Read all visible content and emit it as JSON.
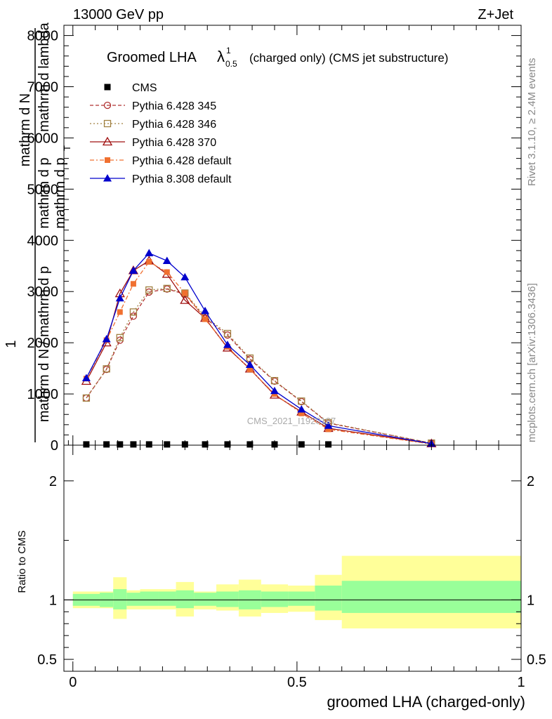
{
  "header": {
    "left": "13000 GeV pp",
    "right": "Z+Jet"
  },
  "plot": {
    "title_main": "Groomed LHA",
    "title_lambda": "λ",
    "title_sub": "0.5",
    "title_sup": "1",
    "title_rest": "(charged only) (CMS jet substructure)",
    "watermark": "CMS_2021_I1920187"
  },
  "side_labels": {
    "rivet": "Rivet 3.1.10, ≥ 2.4M events",
    "mcplots": "mcplots.cern.ch [arXiv:1306.3436]"
  },
  "ylabel_parts": {
    "one": "1",
    "line1": "mathrm d N",
    "line2": "mathrm d p",
    "line3": "mathrm d N / mathrm d p",
    "line4": "mathrm d p",
    "line5": "mathrm d lambda",
    "sub_t": "T"
  },
  "chart_data": [
    {
      "type": "line",
      "panel": "main",
      "xlabel": "groomed LHA (charged-only)",
      "ylim": [
        0,
        8200
      ],
      "xlim": [
        -0.02,
        1.0
      ],
      "y_ticks": [
        0,
        1000,
        2000,
        3000,
        4000,
        5000,
        6000,
        7000,
        8000
      ],
      "y_tick_labels": [
        "0",
        "1000",
        "2000",
        "3000",
        "4000",
        "5000",
        "6000",
        "7000",
        "8000"
      ],
      "legend_position": "top-left",
      "series": [
        {
          "name": "CMS",
          "color": "#000000",
          "marker": "filled-square",
          "x": [
            0.03,
            0.075,
            0.105,
            0.135,
            0.17,
            0.21,
            0.25,
            0.295,
            0.345,
            0.395,
            0.45,
            0.51,
            0.57
          ],
          "y": [
            15,
            15,
            15,
            15,
            15,
            15,
            15,
            15,
            15,
            15,
            15,
            15,
            15
          ]
        },
        {
          "name": "Pythia 6.428 345",
          "color": "#b03030",
          "marker": "open-circle",
          "dash": "5,3",
          "x": [
            0.03,
            0.075,
            0.105,
            0.135,
            0.17,
            0.21,
            0.25,
            0.295,
            0.345,
            0.395,
            0.45,
            0.51,
            0.57,
            0.8
          ],
          "y": [
            920,
            1480,
            2050,
            2520,
            2990,
            3050,
            2950,
            2480,
            2150,
            1680,
            1250,
            850,
            430,
            40
          ]
        },
        {
          "name": "Pythia 6.428 346",
          "color": "#a08040",
          "marker": "open-square",
          "dash": "2,3",
          "x": [
            0.03,
            0.075,
            0.105,
            0.135,
            0.17,
            0.21,
            0.25,
            0.295,
            0.345,
            0.395,
            0.45,
            0.51,
            0.57,
            0.8
          ],
          "y": [
            920,
            1490,
            2100,
            2600,
            3030,
            3060,
            2970,
            2510,
            2180,
            1700,
            1260,
            860,
            440,
            40
          ]
        },
        {
          "name": "Pythia 6.428 370",
          "color": "#a01010",
          "marker": "open-triangle",
          "dash": "",
          "x": [
            0.03,
            0.075,
            0.105,
            0.135,
            0.17,
            0.21,
            0.25,
            0.295,
            0.345,
            0.395,
            0.45,
            0.51,
            0.57,
            0.8
          ],
          "y": [
            1250,
            2000,
            2960,
            3410,
            3600,
            3340,
            2830,
            2480,
            1900,
            1490,
            980,
            650,
            330,
            30
          ]
        },
        {
          "name": "Pythia 6.428 default",
          "color": "#f07030",
          "marker": "filled-square-small",
          "dash": "6,3,2,3",
          "x": [
            0.03,
            0.075,
            0.105,
            0.135,
            0.17,
            0.21,
            0.25,
            0.295,
            0.345,
            0.395,
            0.45,
            0.51,
            0.57,
            0.8
          ],
          "y": [
            1300,
            2050,
            2600,
            3150,
            3580,
            3380,
            2970,
            2460,
            1920,
            1480,
            1000,
            620,
            310,
            20
          ]
        },
        {
          "name": "Pythia 8.308 default",
          "color": "#0000cc",
          "marker": "filled-triangle",
          "dash": "",
          "x": [
            0.03,
            0.075,
            0.105,
            0.135,
            0.17,
            0.21,
            0.25,
            0.295,
            0.345,
            0.395,
            0.45,
            0.51,
            0.57,
            0.8
          ],
          "y": [
            1310,
            2070,
            2870,
            3410,
            3750,
            3600,
            3280,
            2620,
            1960,
            1570,
            1060,
            700,
            380,
            30
          ]
        }
      ]
    },
    {
      "type": "area",
      "panel": "ratio",
      "ylabel": "Ratio to CMS",
      "xlabel": "groomed LHA (charged-only)",
      "ylim": [
        0.4,
        2.3
      ],
      "xlim": [
        -0.02,
        1.0
      ],
      "y_ticks": [
        0.5,
        1,
        2
      ],
      "y_tick_labels": [
        "0.5",
        "1",
        "2"
      ],
      "x_ticks": [
        0,
        0.5,
        1
      ],
      "x_tick_labels": [
        "0",
        "0.5",
        "1"
      ],
      "bin_edges": [
        0.0,
        0.06,
        0.09,
        0.12,
        0.15,
        0.19,
        0.23,
        0.27,
        0.32,
        0.37,
        0.42,
        0.48,
        0.54,
        0.6,
        1.0
      ],
      "stat_band": [
        [
          0.95,
          1.05
        ],
        [
          0.94,
          1.06
        ],
        [
          0.92,
          1.09
        ],
        [
          0.95,
          1.06
        ],
        [
          0.95,
          1.07
        ],
        [
          0.95,
          1.07
        ],
        [
          0.93,
          1.08
        ],
        [
          0.95,
          1.06
        ],
        [
          0.94,
          1.07
        ],
        [
          0.92,
          1.08
        ],
        [
          0.94,
          1.07
        ],
        [
          0.95,
          1.07
        ],
        [
          0.91,
          1.12
        ],
        [
          0.89,
          1.16
        ]
      ],
      "total_band": [
        [
          0.93,
          1.07
        ],
        [
          0.93,
          1.07
        ],
        [
          0.84,
          1.19
        ],
        [
          0.92,
          1.08
        ],
        [
          0.92,
          1.09
        ],
        [
          0.92,
          1.09
        ],
        [
          0.86,
          1.15
        ],
        [
          0.92,
          1.07
        ],
        [
          0.91,
          1.13
        ],
        [
          0.86,
          1.17
        ],
        [
          0.89,
          1.13
        ],
        [
          0.9,
          1.12
        ],
        [
          0.83,
          1.21
        ],
        [
          0.76,
          1.37
        ]
      ],
      "colors": {
        "stat": "#99ff99",
        "total": "#ffff99"
      }
    }
  ]
}
